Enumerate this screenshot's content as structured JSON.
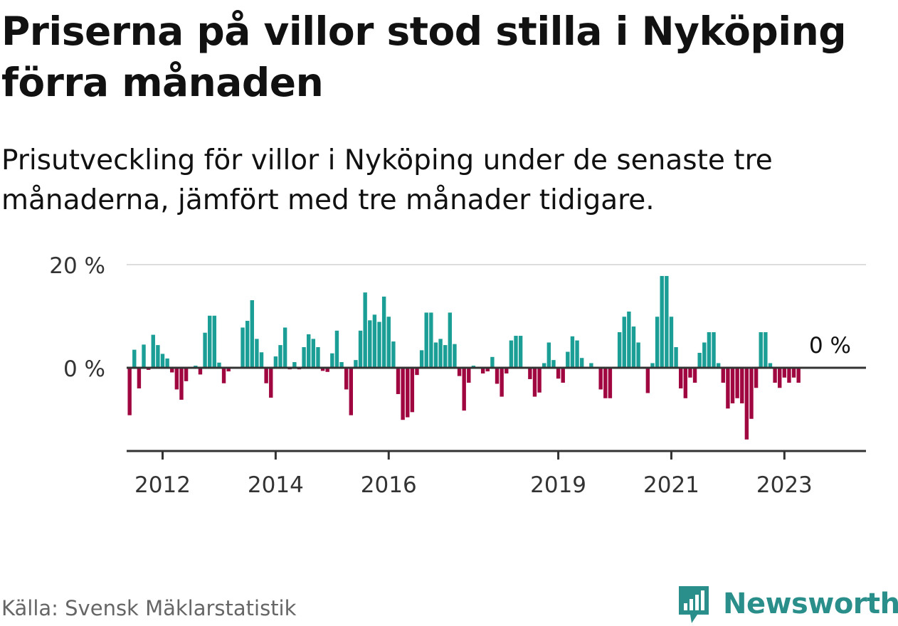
{
  "title": "Priserna på villor stod stilla i Nyköping förra månaden",
  "subtitle": "Prisutveckling för villor i Nyköping under de senaste tre månaderna, jämfört med tre månader tidigare.",
  "source": "Källa: Svensk Mäklarstatistik",
  "brand": "Newsworthy",
  "colors": {
    "positive": "#1a9e96",
    "negative": "#a0063f",
    "brand": "#2a8f8a",
    "axis": "#333333",
    "grid": "#dddddd"
  },
  "chart_data": {
    "type": "bar",
    "y_unit": "%",
    "ylim": [
      -16,
      20
    ],
    "yticks": [
      0,
      20
    ],
    "ytick_labels": [
      "0 %",
      "20 %"
    ],
    "xtick_labels": [
      "2012",
      "2014",
      "2016",
      "2019",
      "2021",
      "2023"
    ],
    "xtick_months": [
      0,
      24,
      48,
      84,
      108,
      132
    ],
    "start_month_offset": -7,
    "last_value_label": "0 %",
    "grid": true,
    "values": [
      -9.2,
      3.5,
      -4,
      4.5,
      -0.4,
      6.4,
      4.4,
      2.7,
      1.8,
      -0.9,
      -4.2,
      -6.2,
      -2.6,
      0,
      0.4,
      -1.3,
      6.8,
      10.1,
      10.1,
      1,
      -3,
      -0.7,
      0,
      0,
      7.8,
      9.1,
      13.1,
      5.6,
      3,
      -3,
      -5.8,
      2.2,
      4.4,
      7.8,
      -0.3,
      1.1,
      -0.3,
      4,
      6.5,
      5.6,
      4,
      -0.6,
      -0.8,
      2.8,
      7.2,
      1.1,
      -4.2,
      -9.2,
      1.5,
      7.2,
      14.6,
      9.2,
      10.3,
      8.9,
      13.8,
      9.9,
      5.1,
      -5.1,
      -10.1,
      -9.6,
      -8.6,
      -1.4,
      3.4,
      10.7,
      10.7,
      4.9,
      5.6,
      4.4,
      10.7,
      4.6,
      -1.6,
      -8.3,
      -2.9,
      0.4,
      -0.2,
      -1.1,
      -0.7,
      2.1,
      -3.1,
      -5.6,
      -1.1,
      5.3,
      6.2,
      6.2,
      0,
      -2.2,
      -5.6,
      -4.8,
      0.9,
      4.9,
      1.5,
      -2.1,
      -2.9,
      3.1,
      6.1,
      5.3,
      1.9,
      0,
      0.9,
      0,
      -4.2,
      -5.9,
      -5.9,
      0,
      6.9,
      9.9,
      10.9,
      8,
      4.9,
      0,
      -4.9,
      0.9,
      9.9,
      17.8,
      17.8,
      9.9,
      4,
      -4,
      -5.9,
      -1.9,
      -2.9,
      2.9,
      4.9,
      6.9,
      6.9,
      0.9,
      -2.9,
      -7.9,
      -6.9,
      -5.9,
      -6.9,
      -13.9,
      -9.9,
      -3.9,
      6.9,
      6.9,
      0.9,
      -2.9,
      -3.9,
      -1.9,
      -2.9,
      -1.9,
      -2.9,
      0
    ]
  }
}
